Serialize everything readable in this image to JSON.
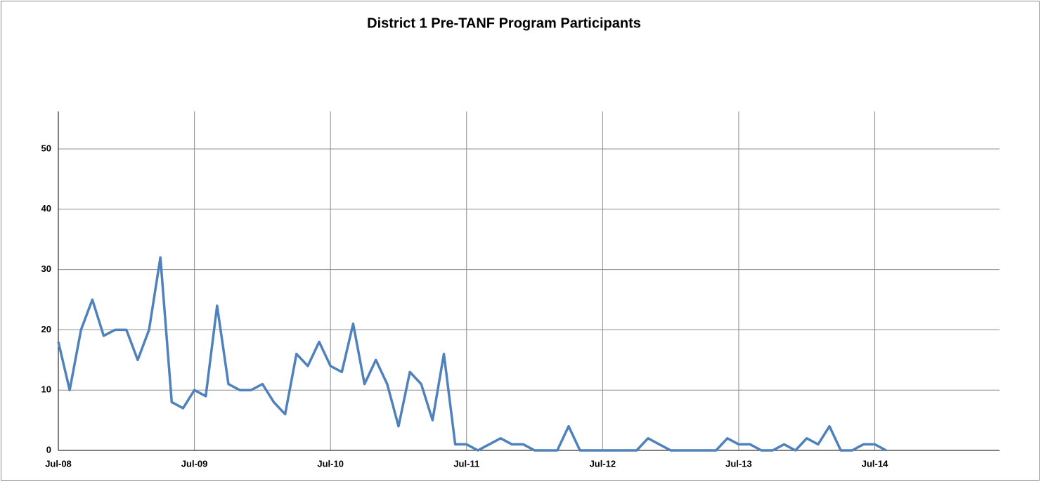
{
  "chart_data": {
    "type": "line",
    "title": "District 1 Pre-TANF Program Participants",
    "x": [
      "2008-07",
      "2008-08",
      "2008-09",
      "2008-10",
      "2008-11",
      "2008-12",
      "2009-01",
      "2009-02",
      "2009-03",
      "2009-04",
      "2009-05",
      "2009-06",
      "2009-07",
      "2009-08",
      "2009-09",
      "2009-10",
      "2009-11",
      "2009-12",
      "2010-01",
      "2010-02",
      "2010-03",
      "2010-04",
      "2010-05",
      "2010-06",
      "2010-07",
      "2010-08",
      "2010-09",
      "2010-10",
      "2010-11",
      "2010-12",
      "2011-01",
      "2011-02",
      "2011-03",
      "2011-04",
      "2011-05",
      "2011-06",
      "2011-07",
      "2011-08",
      "2011-09",
      "2011-10",
      "2011-11",
      "2011-12",
      "2012-01",
      "2012-02",
      "2012-03",
      "2012-04",
      "2012-05",
      "2012-06",
      "2012-07",
      "2012-08",
      "2012-09",
      "2012-10",
      "2012-11",
      "2012-12",
      "2013-01",
      "2013-02",
      "2013-03",
      "2013-04",
      "2013-05",
      "2013-06",
      "2013-07",
      "2013-08",
      "2013-09",
      "2013-10",
      "2013-11",
      "2013-12",
      "2014-01",
      "2014-02",
      "2014-03",
      "2014-04",
      "2014-05",
      "2014-06",
      "2014-07",
      "2014-08"
    ],
    "series": [
      {
        "color": "#4f81bd",
        "values": [
          18,
          10,
          20,
          25,
          19,
          20,
          20,
          15,
          20,
          32,
          8,
          7,
          10,
          9,
          24,
          11,
          10,
          10,
          11,
          8,
          6,
          16,
          14,
          18,
          14,
          13,
          21,
          11,
          15,
          11,
          4,
          13,
          11,
          5,
          16,
          1,
          1,
          0,
          1,
          2,
          1,
          1,
          0,
          0,
          0,
          4,
          0,
          0,
          0,
          0,
          0,
          0,
          2,
          1,
          0,
          0,
          0,
          0,
          0,
          2,
          1,
          1,
          0,
          0,
          1,
          0,
          2,
          1,
          4,
          0,
          0,
          1,
          1,
          0
        ]
      }
    ],
    "xlim": [
      "2008-07",
      "2015-06"
    ],
    "xticks": [
      {
        "value": "2008-07",
        "label": "Jul-08"
      },
      {
        "value": "2009-07",
        "label": "Jul-09"
      },
      {
        "value": "2010-07",
        "label": "Jul-10"
      },
      {
        "value": "2011-07",
        "label": "Jul-11"
      },
      {
        "value": "2012-07",
        "label": "Jul-12"
      },
      {
        "value": "2013-07",
        "label": "Jul-13"
      },
      {
        "value": "2014-07",
        "label": "Jul-14"
      }
    ],
    "ylim": [
      0,
      56
    ],
    "yticks": [
      0,
      10,
      20,
      30,
      40,
      50
    ],
    "grid": true
  }
}
